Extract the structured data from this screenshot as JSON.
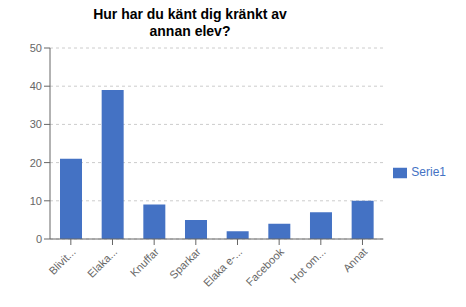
{
  "chart_data": {
    "type": "bar",
    "title": "Hur har du känt dig kränkt av\nannan elev?",
    "categories": [
      "Blivit...",
      "Elaka...",
      "Knuffar",
      "Sparkar",
      "Elaka e-...",
      "Facebook",
      "Hot om...",
      "Annat"
    ],
    "series": [
      {
        "name": "Serie1",
        "color": "#4472C4",
        "values": [
          21,
          39,
          9,
          5,
          2,
          4,
          7,
          10
        ]
      }
    ],
    "ylim": [
      0,
      50
    ],
    "yticks": [
      0,
      10,
      20,
      30,
      40,
      50
    ],
    "grid": true,
    "legend": "right"
  }
}
